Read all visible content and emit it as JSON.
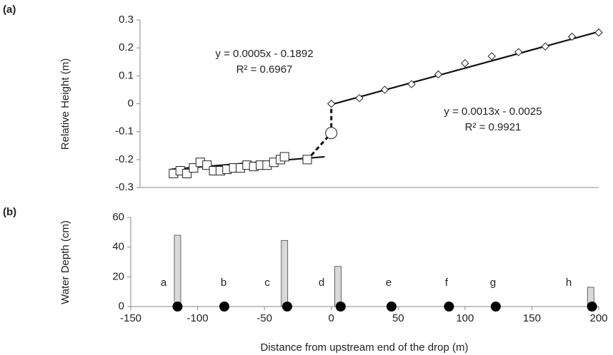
{
  "chart_data": [
    {
      "type": "scatter",
      "panel_label": "(a)",
      "y_label": "Relative Height (m)",
      "xlim": [
        -150,
        200
      ],
      "ylim": [
        -0.3,
        0.3
      ],
      "yticks": [
        -0.3,
        -0.2,
        -0.1,
        0,
        0.1,
        0.2,
        0.3
      ],
      "series": [
        {
          "x": [
            -118,
            -113,
            -108,
            -103,
            -98,
            -93,
            -88,
            -83,
            -78,
            -73,
            -68,
            -63,
            -58,
            -53,
            -48,
            -43,
            -38,
            -35,
            -18
          ],
          "values": [
            -0.25,
            -0.24,
            -0.25,
            -0.23,
            -0.21,
            -0.22,
            -0.24,
            -0.24,
            -0.235,
            -0.23,
            -0.23,
            -0.22,
            -0.225,
            -0.22,
            -0.22,
            -0.21,
            -0.2,
            -0.19,
            -0.2
          ],
          "marker": "square",
          "line": "none",
          "color": "#222222",
          "fill": "#ffffff"
        },
        {
          "x": [
            0
          ],
          "values": [
            -0.105
          ],
          "marker": "circle",
          "line": "none",
          "color": "#222222",
          "fill": "#ffffff"
        },
        {
          "x": [
            0,
            21,
            40,
            60,
            80,
            100,
            120,
            140,
            160,
            180,
            200
          ],
          "values": [
            0,
            0.02,
            0.05,
            0.07,
            0.105,
            0.145,
            0.17,
            0.185,
            0.205,
            0.24,
            0.255
          ],
          "marker": "diamond",
          "line": "none",
          "color": "#222222",
          "fill": "#ffffff"
        },
        {
          "x": [
            -120,
            -5
          ],
          "values": [
            -0.235,
            -0.19
          ],
          "marker": "none",
          "line": "solid",
          "color": "#111111"
        },
        {
          "x": [
            0,
            200
          ],
          "values": [
            -0.003,
            0.258
          ],
          "marker": "none",
          "line": "solid",
          "color": "#111111"
        },
        {
          "x": [
            -15,
            0,
            0
          ],
          "values": [
            -0.185,
            -0.105,
            0
          ],
          "marker": "none",
          "line": "dashed",
          "color": "#111111"
        }
      ],
      "equations": [
        {
          "equation": "y = 0.0005x - 0.1892",
          "r2": "R² = 0.6967"
        },
        {
          "equation": "y = 0.0013x - 0.0025",
          "r2": "R² = 0.9921"
        }
      ]
    },
    {
      "type": "bar",
      "panel_label": "(b)",
      "y_label": "Water Depth (cm)",
      "x_label": "Distance from upstream end of the drop (m)",
      "xlim": [
        -150,
        200
      ],
      "xticks": [
        -150,
        -100,
        -50,
        0,
        50,
        100,
        150,
        200
      ],
      "ylim": [
        0,
        60
      ],
      "yticks": [
        0,
        20,
        40,
        60
      ],
      "x": [
        -115,
        -35,
        5,
        194
      ],
      "values": [
        48,
        44.5,
        27,
        13
      ],
      "color": "#d9d9d9",
      "points": {
        "x": [
          -115,
          -80,
          -33,
          7,
          45,
          88,
          123,
          195
        ],
        "values": [
          0,
          0,
          0,
          0,
          0,
          0,
          0,
          0
        ],
        "color": "#000000"
      },
      "annotations": [
        "a",
        "b",
        "c",
        "d",
        "e",
        "f",
        "g",
        "h"
      ]
    }
  ]
}
